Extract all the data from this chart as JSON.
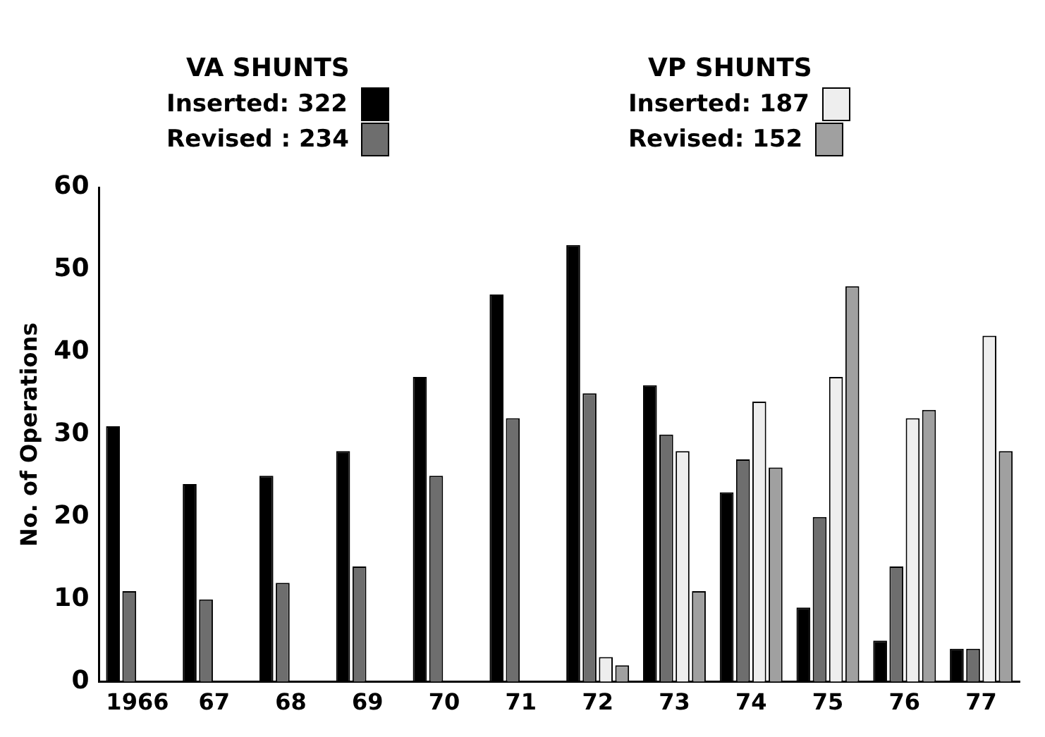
{
  "chart_data": {
    "type": "bar",
    "ylabel": "No. of Operations",
    "categories": [
      "1966",
      "67",
      "68",
      "69",
      "70",
      "71",
      "72",
      "73",
      "74",
      "75",
      "76",
      "77"
    ],
    "series": [
      {
        "name": "Inserted: 322",
        "color": "#000000",
        "values": [
          31,
          24,
          25,
          28,
          37,
          47,
          53,
          36,
          23,
          9,
          5,
          4
        ]
      },
      {
        "name": "Revised : 234",
        "color": "#6e6e6e",
        "values": [
          11,
          10,
          12,
          14,
          25,
          32,
          35,
          30,
          27,
          20,
          14,
          4
        ]
      },
      {
        "name": "Inserted: 187",
        "color": "#eeeeee",
        "values": [
          null,
          null,
          null,
          null,
          null,
          null,
          3,
          28,
          34,
          37,
          32,
          42
        ]
      },
      {
        "name": "Revised: 152",
        "color": "#a0a0a0",
        "values": [
          null,
          null,
          null,
          null,
          null,
          null,
          2,
          11,
          26,
          48,
          33,
          28
        ]
      }
    ],
    "annotations": [
      "VA SHUNTS",
      "VP SHUNTS"
    ],
    "ylim": [
      0,
      60
    ],
    "yticks": [
      0,
      10,
      20,
      30,
      40,
      50,
      60
    ],
    "grid": false,
    "legend": "top"
  }
}
